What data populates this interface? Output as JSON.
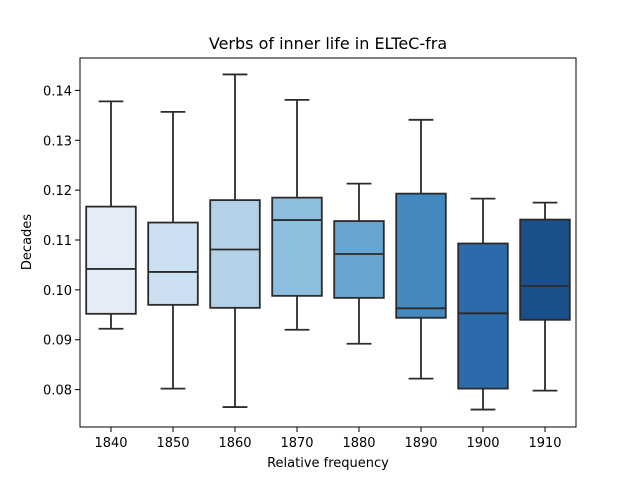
{
  "chart_data": {
    "type": "box",
    "title": "Verbs of inner life in ELTeC-fra",
    "xlabel": "Relative frequency",
    "ylabel": "Decades",
    "categories": [
      "1840",
      "1850",
      "1860",
      "1870",
      "1880",
      "1890",
      "1900",
      "1910"
    ],
    "ylim": [
      0.0725,
      0.1465
    ],
    "yticks": [
      0.08,
      0.09,
      0.1,
      0.11,
      0.12,
      0.13,
      0.14
    ],
    "ytick_labels": [
      "0.08",
      "0.09",
      "0.10",
      "0.11",
      "0.12",
      "0.13",
      "0.14"
    ],
    "grid": false,
    "boxes": [
      {
        "category": "1840",
        "whisker_low": 0.0922,
        "q1": 0.0952,
        "median": 0.1042,
        "q3": 0.1167,
        "whisker_high": 0.1378,
        "color": "#e3ecf7"
      },
      {
        "category": "1850",
        "whisker_low": 0.0802,
        "q1": 0.097,
        "median": 0.1036,
        "q3": 0.1135,
        "whisker_high": 0.1357,
        "color": "#cde0f1"
      },
      {
        "category": "1860",
        "whisker_low": 0.0765,
        "q1": 0.0964,
        "median": 0.1081,
        "q3": 0.118,
        "whisker_high": 0.1432,
        "color": "#b3d1e7"
      },
      {
        "category": "1870",
        "whisker_low": 0.092,
        "q1": 0.0988,
        "median": 0.114,
        "q3": 0.1185,
        "whisker_high": 0.1381,
        "color": "#8dbedd"
      },
      {
        "category": "1880",
        "whisker_low": 0.0892,
        "q1": 0.0984,
        "median": 0.1072,
        "q3": 0.1138,
        "whisker_high": 0.1213,
        "color": "#66a5d0"
      },
      {
        "category": "1890",
        "whisker_low": 0.0822,
        "q1": 0.0944,
        "median": 0.0963,
        "q3": 0.1193,
        "whisker_high": 0.1341,
        "color": "#4489bf"
      },
      {
        "category": "1900",
        "whisker_low": 0.076,
        "q1": 0.0802,
        "median": 0.0953,
        "q3": 0.1093,
        "whisker_high": 0.1183,
        "color": "#2b6ba9"
      },
      {
        "category": "1910",
        "whisker_low": 0.0798,
        "q1": 0.094,
        "median": 0.1008,
        "q3": 0.1141,
        "whisker_high": 0.1175,
        "color": "#1b4f8b"
      }
    ]
  }
}
